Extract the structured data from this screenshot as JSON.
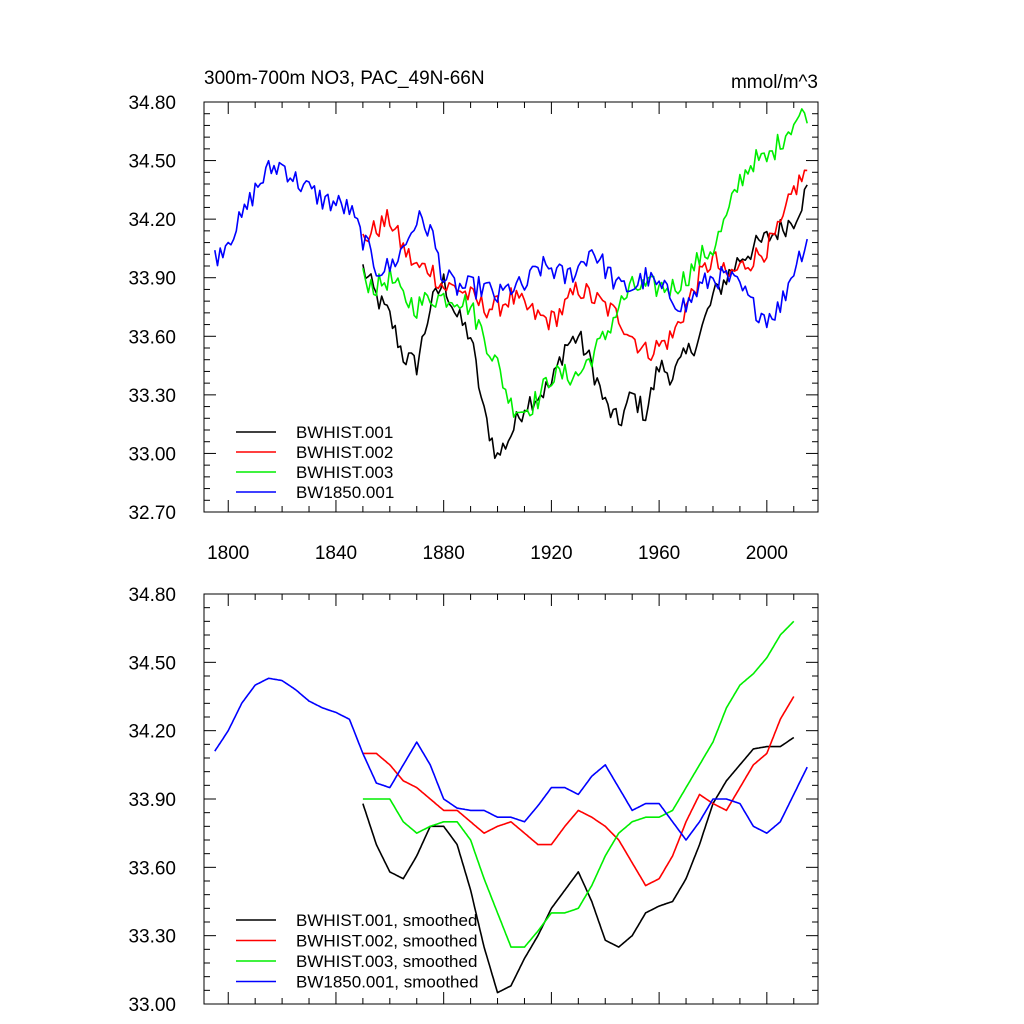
{
  "header": {
    "title": "300m-700m NO3, PAC_49N-66N",
    "units": "mmol/m^3"
  },
  "colors": {
    "BWHIST.001": "#000000",
    "BWHIST.002": "#ff0000",
    "BWHIST.003": "#00ee00",
    "BW1850.001": "#0000ff"
  },
  "chart_data": [
    {
      "type": "line",
      "panel": "top",
      "title": "300m-700m NO3, PAC_49N-66N",
      "ylabel_right": "mmol/m^3",
      "xlim": [
        1791,
        2019
      ],
      "ylim": [
        32.7,
        34.8
      ],
      "xticks": [
        1800,
        1840,
        1880,
        1920,
        1960,
        2000
      ],
      "yticks": [
        32.7,
        33.0,
        33.3,
        33.6,
        33.9,
        34.2,
        34.5,
        34.8
      ],
      "ytick_labels": [
        "32.70",
        "33.00",
        "33.30",
        "33.60",
        "33.90",
        "34.20",
        "34.50",
        "34.80"
      ],
      "legend_position": "bottom-left",
      "series": [
        {
          "name": "BWHIST.001",
          "color": "#000000",
          "x": [
            1850,
            1855,
            1860,
            1865,
            1870,
            1875,
            1880,
            1885,
            1890,
            1895,
            1900,
            1905,
            1910,
            1915,
            1920,
            1925,
            1930,
            1935,
            1940,
            1945,
            1950,
            1955,
            1960,
            1965,
            1970,
            1975,
            1980,
            1985,
            1990,
            1995,
            2000,
            2005,
            2010,
            2015
          ],
          "y": [
            33.95,
            33.8,
            33.7,
            33.5,
            33.45,
            33.75,
            33.88,
            33.7,
            33.6,
            33.2,
            32.98,
            33.1,
            33.25,
            33.3,
            33.35,
            33.55,
            33.6,
            33.45,
            33.25,
            33.15,
            33.3,
            33.2,
            33.45,
            33.4,
            33.5,
            33.6,
            33.8,
            33.9,
            34.0,
            34.05,
            34.1,
            34.15,
            34.2,
            34.35
          ]
        },
        {
          "name": "BWHIST.002",
          "color": "#ff0000",
          "x": [
            1850,
            1855,
            1860,
            1865,
            1870,
            1875,
            1880,
            1885,
            1890,
            1895,
            1900,
            1905,
            1910,
            1915,
            1920,
            1925,
            1930,
            1935,
            1940,
            1945,
            1950,
            1955,
            1960,
            1965,
            1970,
            1975,
            1980,
            1985,
            1990,
            1995,
            2000,
            2005,
            2010,
            2015
          ],
          "y": [
            34.1,
            34.15,
            34.2,
            34.05,
            33.95,
            33.95,
            33.85,
            33.85,
            33.8,
            33.75,
            33.75,
            33.8,
            33.75,
            33.7,
            33.68,
            33.75,
            33.85,
            33.8,
            33.75,
            33.7,
            33.6,
            33.52,
            33.55,
            33.6,
            33.75,
            33.9,
            34.0,
            33.9,
            33.95,
            34.0,
            34.05,
            34.15,
            34.35,
            34.45
          ]
        },
        {
          "name": "BWHIST.003",
          "color": "#00ee00",
          "x": [
            1850,
            1855,
            1860,
            1865,
            1870,
            1875,
            1880,
            1885,
            1890,
            1895,
            1900,
            1905,
            1910,
            1915,
            1920,
            1925,
            1930,
            1935,
            1940,
            1945,
            1950,
            1955,
            1960,
            1965,
            1970,
            1975,
            1980,
            1985,
            1990,
            1995,
            2000,
            2005,
            2010,
            2015
          ],
          "y": [
            33.9,
            33.85,
            33.9,
            33.8,
            33.75,
            33.8,
            33.8,
            33.8,
            33.75,
            33.6,
            33.45,
            33.25,
            33.22,
            33.28,
            33.4,
            33.4,
            33.4,
            33.5,
            33.6,
            33.75,
            33.85,
            33.85,
            33.85,
            33.85,
            33.9,
            34.0,
            34.05,
            34.2,
            34.4,
            34.5,
            34.5,
            34.6,
            34.7,
            34.75
          ]
        },
        {
          "name": "BW1850.001",
          "color": "#0000ff",
          "x": [
            1795,
            1800,
            1805,
            1810,
            1815,
            1820,
            1825,
            1830,
            1835,
            1840,
            1845,
            1850,
            1855,
            1860,
            1865,
            1870,
            1875,
            1880,
            1885,
            1890,
            1895,
            1900,
            1905,
            1910,
            1915,
            1920,
            1925,
            1930,
            1935,
            1940,
            1945,
            1950,
            1955,
            1960,
            1965,
            1970,
            1975,
            1980,
            1985,
            1990,
            1995,
            2000,
            2005,
            2010,
            2015
          ],
          "y": [
            34.0,
            34.1,
            34.2,
            34.35,
            34.45,
            34.48,
            34.4,
            34.35,
            34.3,
            34.28,
            34.25,
            34.1,
            33.95,
            33.95,
            34.05,
            34.2,
            34.15,
            33.9,
            33.85,
            33.85,
            33.85,
            33.8,
            33.85,
            33.85,
            33.95,
            33.95,
            33.9,
            33.95,
            34.05,
            33.95,
            33.85,
            33.85,
            33.9,
            33.85,
            33.8,
            33.75,
            33.85,
            33.9,
            33.9,
            33.85,
            33.75,
            33.7,
            33.75,
            33.95,
            34.1
          ]
        }
      ],
      "legend": [
        {
          "label": "BWHIST.001",
          "color": "#000000"
        },
        {
          "label": "BWHIST.002",
          "color": "#ff0000"
        },
        {
          "label": "BWHIST.003",
          "color": "#00ee00"
        },
        {
          "label": "BW1850.001",
          "color": "#0000ff"
        }
      ]
    },
    {
      "type": "line",
      "panel": "bottom",
      "title": "",
      "xlim": [
        1791,
        2019
      ],
      "ylim": [
        33.0,
        34.8
      ],
      "yticks": [
        33.0,
        33.3,
        33.6,
        33.9,
        34.2,
        34.5,
        34.8
      ],
      "ytick_labels": [
        "33.00",
        "33.30",
        "33.60",
        "33.90",
        "34.20",
        "34.50",
        "34.80"
      ],
      "legend_position": "bottom-left",
      "series": [
        {
          "name": "BWHIST.001, smoothed",
          "color": "#000000",
          "x": [
            1850,
            1855,
            1860,
            1865,
            1870,
            1875,
            1880,
            1885,
            1890,
            1895,
            1900,
            1905,
            1910,
            1915,
            1920,
            1925,
            1930,
            1935,
            1940,
            1945,
            1950,
            1955,
            1960,
            1965,
            1970,
            1975,
            1980,
            1985,
            1990,
            1995,
            2000,
            2005,
            2010
          ],
          "y": [
            33.88,
            33.7,
            33.58,
            33.55,
            33.65,
            33.78,
            33.78,
            33.7,
            33.5,
            33.25,
            33.05,
            33.08,
            33.2,
            33.3,
            33.42,
            33.5,
            33.58,
            33.45,
            33.28,
            33.25,
            33.3,
            33.4,
            33.43,
            33.45,
            33.55,
            33.7,
            33.88,
            33.98,
            34.05,
            34.12,
            34.13,
            34.13,
            34.17
          ]
        },
        {
          "name": "BWHIST.002, smoothed",
          "color": "#ff0000",
          "x": [
            1850,
            1855,
            1860,
            1865,
            1870,
            1875,
            1880,
            1885,
            1890,
            1895,
            1900,
            1905,
            1910,
            1915,
            1920,
            1925,
            1930,
            1935,
            1940,
            1945,
            1950,
            1955,
            1960,
            1965,
            1970,
            1975,
            1980,
            1985,
            1990,
            1995,
            2000,
            2005,
            2010
          ],
          "y": [
            34.1,
            34.1,
            34.05,
            33.98,
            33.95,
            33.9,
            33.85,
            33.85,
            33.8,
            33.75,
            33.78,
            33.8,
            33.75,
            33.7,
            33.7,
            33.78,
            33.85,
            33.82,
            33.78,
            33.72,
            33.62,
            33.52,
            33.55,
            33.65,
            33.8,
            33.92,
            33.88,
            33.85,
            33.95,
            34.05,
            34.1,
            34.25,
            34.35
          ]
        },
        {
          "name": "BWHIST.003, smoothed",
          "color": "#00ee00",
          "x": [
            1850,
            1855,
            1860,
            1865,
            1870,
            1875,
            1880,
            1885,
            1890,
            1895,
            1900,
            1905,
            1910,
            1915,
            1920,
            1925,
            1930,
            1935,
            1940,
            1945,
            1950,
            1955,
            1960,
            1965,
            1970,
            1975,
            1980,
            1985,
            1990,
            1995,
            2000,
            2005,
            2010
          ],
          "y": [
            33.9,
            33.9,
            33.9,
            33.8,
            33.75,
            33.78,
            33.8,
            33.8,
            33.72,
            33.55,
            33.4,
            33.25,
            33.25,
            33.32,
            33.4,
            33.4,
            33.42,
            33.52,
            33.65,
            33.75,
            33.8,
            33.82,
            33.82,
            33.85,
            33.95,
            34.05,
            34.15,
            34.3,
            34.4,
            34.45,
            34.52,
            34.62,
            34.68
          ]
        },
        {
          "name": "BW1850.001, smoothed",
          "color": "#0000ff",
          "x": [
            1795,
            1800,
            1805,
            1810,
            1815,
            1820,
            1825,
            1830,
            1835,
            1840,
            1845,
            1850,
            1855,
            1860,
            1865,
            1870,
            1875,
            1880,
            1885,
            1890,
            1895,
            1900,
            1905,
            1910,
            1915,
            1920,
            1925,
            1930,
            1935,
            1940,
            1945,
            1950,
            1955,
            1960,
            1965,
            1970,
            1975,
            1980,
            1985,
            1990,
            1995,
            2000,
            2005,
            2010,
            2015
          ],
          "y": [
            34.11,
            34.2,
            34.32,
            34.4,
            34.43,
            34.42,
            34.38,
            34.33,
            34.3,
            34.28,
            34.25,
            34.1,
            33.97,
            33.95,
            34.05,
            34.15,
            34.05,
            33.9,
            33.86,
            33.85,
            33.85,
            33.82,
            33.82,
            33.8,
            33.87,
            33.95,
            33.95,
            33.92,
            34.0,
            34.05,
            33.95,
            33.85,
            33.88,
            33.88,
            33.8,
            33.72,
            33.8,
            33.9,
            33.9,
            33.88,
            33.78,
            33.75,
            33.8,
            33.92,
            34.04
          ]
        }
      ],
      "legend": [
        {
          "label": "BWHIST.001, smoothed",
          "color": "#000000"
        },
        {
          "label": "BWHIST.002, smoothed",
          "color": "#ff0000"
        },
        {
          "label": "BWHIST.003, smoothed",
          "color": "#00ee00"
        },
        {
          "label": "BW1850.001, smoothed",
          "color": "#0000ff"
        }
      ]
    }
  ]
}
